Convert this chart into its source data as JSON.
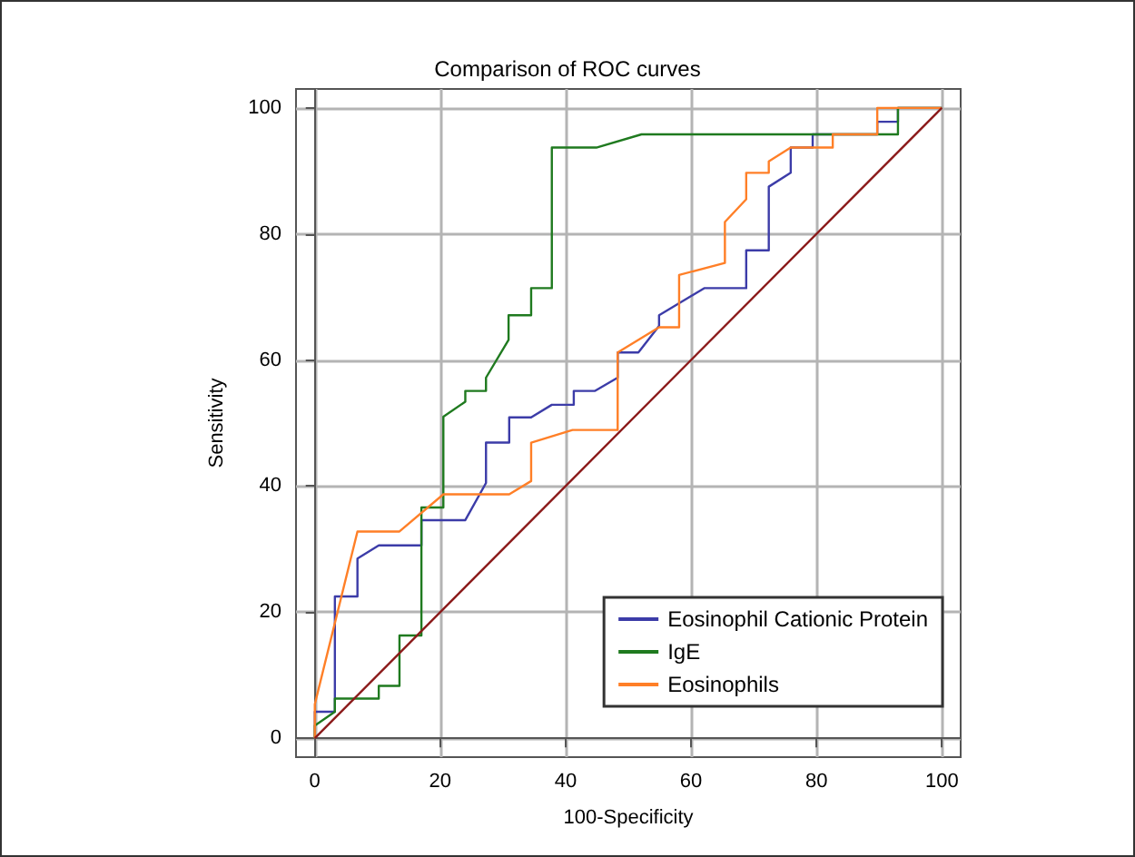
{
  "chart_data": {
    "type": "line",
    "title": "Comparison of ROC curves",
    "xlabel": "100-Specificity",
    "ylabel": "Sensitivity",
    "xlim": [
      -3,
      103
    ],
    "ylim": [
      -3,
      103
    ],
    "xticks": [
      0,
      20,
      40,
      60,
      80,
      100
    ],
    "yticks": [
      0,
      20,
      40,
      60,
      80,
      100
    ],
    "grid": true,
    "legend": "bottom right",
    "marker": "none",
    "line_style": "solid",
    "series": [
      {
        "name": "Eosinophil Cationic Protein",
        "color": "#3c3ca8",
        "x": [
          0,
          0,
          3.2,
          3.2,
          6.8,
          6.8,
          10.2,
          17,
          17,
          24,
          27.3,
          27.3,
          31,
          31,
          34.5,
          37.8,
          41.3,
          41.3,
          44.7,
          48.3,
          48.3,
          51.6,
          54.9,
          54.9,
          62.1,
          68.8,
          68.8,
          72.4,
          72.4,
          75.9,
          75.9,
          79.4,
          79.4,
          89.7,
          89.7,
          93,
          93,
          100
        ],
        "values": [
          0,
          4.2,
          4.2,
          22.5,
          22.5,
          28.5,
          30.6,
          30.6,
          34.6,
          34.6,
          40.5,
          46.9,
          46.9,
          50.9,
          50.9,
          52.9,
          52.9,
          55.1,
          55.1,
          57.2,
          61.2,
          61.2,
          65.4,
          67.1,
          71.4,
          71.4,
          77.4,
          77.4,
          87.5,
          89.7,
          93.7,
          93.7,
          95.8,
          95.8,
          97.8,
          97.8,
          100,
          100
        ]
      },
      {
        "name": "IgE",
        "color": "#1f7a1f",
        "x": [
          0,
          0,
          3.2,
          3.2,
          10.2,
          10.2,
          13.5,
          13.5,
          17,
          17,
          20.5,
          20.5,
          24,
          24,
          27.3,
          27.3,
          30.9,
          30.9,
          34.5,
          34.5,
          37.8,
          37.8,
          44.9,
          52.1,
          93,
          93,
          100
        ],
        "values": [
          0,
          2,
          4.2,
          6.3,
          6.3,
          8.3,
          8.3,
          16.3,
          16.3,
          36.6,
          36.6,
          51,
          53.4,
          55.1,
          55.1,
          57.2,
          63.2,
          67.1,
          67.1,
          71.4,
          71.4,
          93.7,
          93.7,
          95.8,
          95.8,
          100,
          100
        ]
      },
      {
        "name": "Eosinophils",
        "color": "#ff7f27",
        "x": [
          0,
          0,
          6.8,
          13.5,
          20.5,
          31,
          34.5,
          34.5,
          41.1,
          48.3,
          48.3,
          54.9,
          58.1,
          58.1,
          65.4,
          65.4,
          68.8,
          68.8,
          72.4,
          72.4,
          75.9,
          82.6,
          82.6,
          89.7,
          89.7,
          100
        ],
        "values": [
          0,
          5.4,
          32.8,
          32.8,
          38.7,
          38.7,
          40.8,
          46.9,
          48.9,
          48.9,
          61.2,
          65.2,
          65.2,
          73.5,
          75.4,
          81.9,
          85.5,
          89.7,
          89.7,
          91.5,
          93.7,
          93.7,
          95.8,
          95.8,
          100,
          100
        ]
      },
      {
        "color": "#8b1a1a",
        "x": [
          0,
          100
        ],
        "values": [
          0,
          100
        ]
      }
    ]
  }
}
